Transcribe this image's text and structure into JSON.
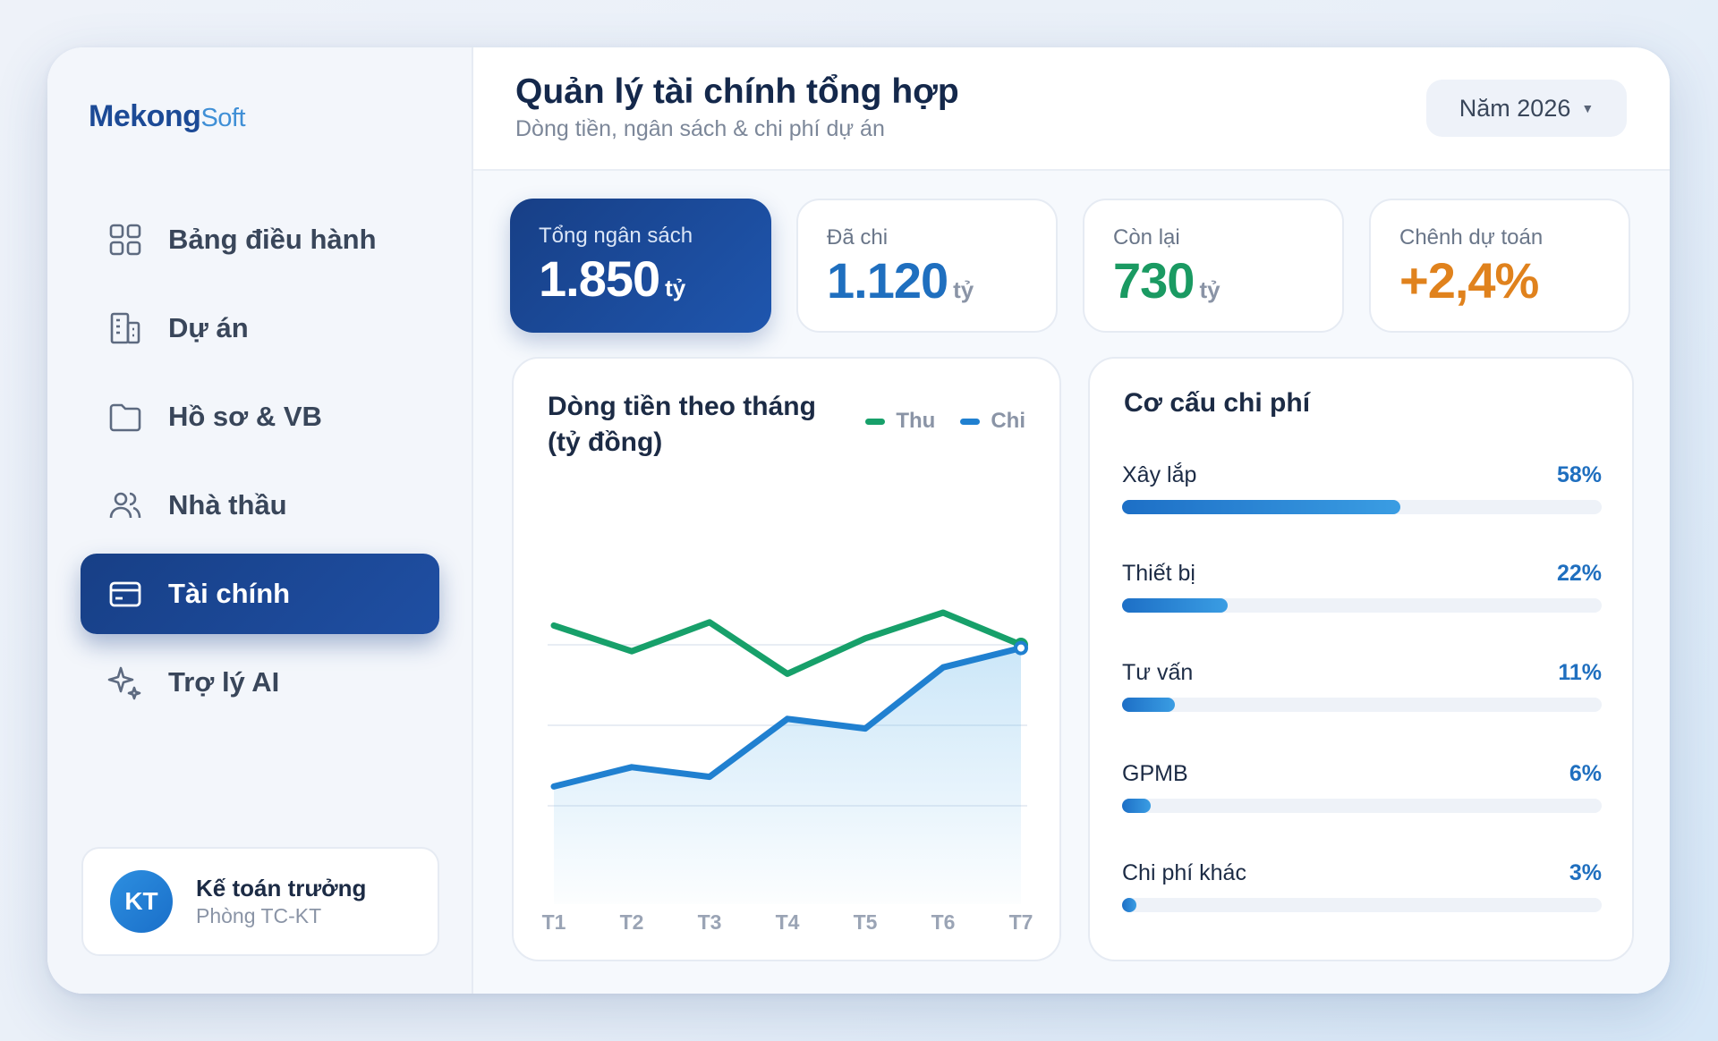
{
  "logo": {
    "brand": "Mekong",
    "suffix": "Soft"
  },
  "sidebar": {
    "items": [
      {
        "label": "Bảng điều hành",
        "icon": "grid-icon",
        "active": false
      },
      {
        "label": "Dự án",
        "icon": "building-icon",
        "active": false
      },
      {
        "label": "Hồ sơ & VB",
        "icon": "folder-icon",
        "active": false
      },
      {
        "label": "Nhà thầu",
        "icon": "users-icon",
        "active": false
      },
      {
        "label": "Tài chính",
        "icon": "wallet-icon",
        "active": true
      },
      {
        "label": "Trợ lý AI",
        "icon": "sparkle-icon",
        "active": false
      }
    ],
    "user": {
      "initials": "KT",
      "name": "Kế toán trưởng",
      "department": "Phòng TC-KT"
    }
  },
  "header": {
    "title": "Quản lý tài chính tổng hợp",
    "subtitle": "Dòng tiền, ngân sách & chi phí dự án",
    "year_select": "Năm 2026"
  },
  "stats": [
    {
      "label": "Tổng ngân sách",
      "value": "1.850",
      "unit": "tỷ",
      "color": "#ffffff"
    },
    {
      "label": "Đã chi",
      "value": "1.120",
      "unit": "tỷ",
      "color": "#1f6fbf"
    },
    {
      "label": "Còn lại",
      "value": "730",
      "unit": "tỷ",
      "color": "#1a9a62"
    },
    {
      "label": "Chênh dự toán",
      "value": "+2,4%",
      "unit": "",
      "color": "#e0821d"
    }
  ],
  "cashflow": {
    "title_line1": "Dòng tiền theo tháng",
    "title_line2": "(tỷ đồng)",
    "legend": {
      "thu": "Thu",
      "chi": "Chi"
    },
    "colors": {
      "thu": "#17a06a",
      "chi": "#2080d0"
    }
  },
  "chart_data": {
    "type": "line",
    "title": "Dòng tiền theo tháng (tỷ đồng)",
    "categories": [
      "T1",
      "T2",
      "T3",
      "T4",
      "T5",
      "T6",
      "T7"
    ],
    "series": [
      {
        "name": "Thu",
        "values": [
          162,
          146,
          164,
          132,
          154,
          170,
          150
        ]
      },
      {
        "name": "Chi",
        "values": [
          62,
          74,
          68,
          104,
          98,
          136,
          148
        ]
      }
    ],
    "ylim": [
      0,
      200
    ],
    "grid": true,
    "legend_position": "top-right"
  },
  "cost_structure": {
    "title": "Cơ cấu chi phí",
    "items": [
      {
        "name": "Xây lắp",
        "percent_label": "58%",
        "percent": 58
      },
      {
        "name": "Thiết bị",
        "percent_label": "22%",
        "percent": 22
      },
      {
        "name": "Tư vấn",
        "percent_label": "11%",
        "percent": 11
      },
      {
        "name": "GPMB",
        "percent_label": "6%",
        "percent": 6
      },
      {
        "name": "Chi phí khác",
        "percent_label": "3%",
        "percent": 3
      }
    ]
  }
}
